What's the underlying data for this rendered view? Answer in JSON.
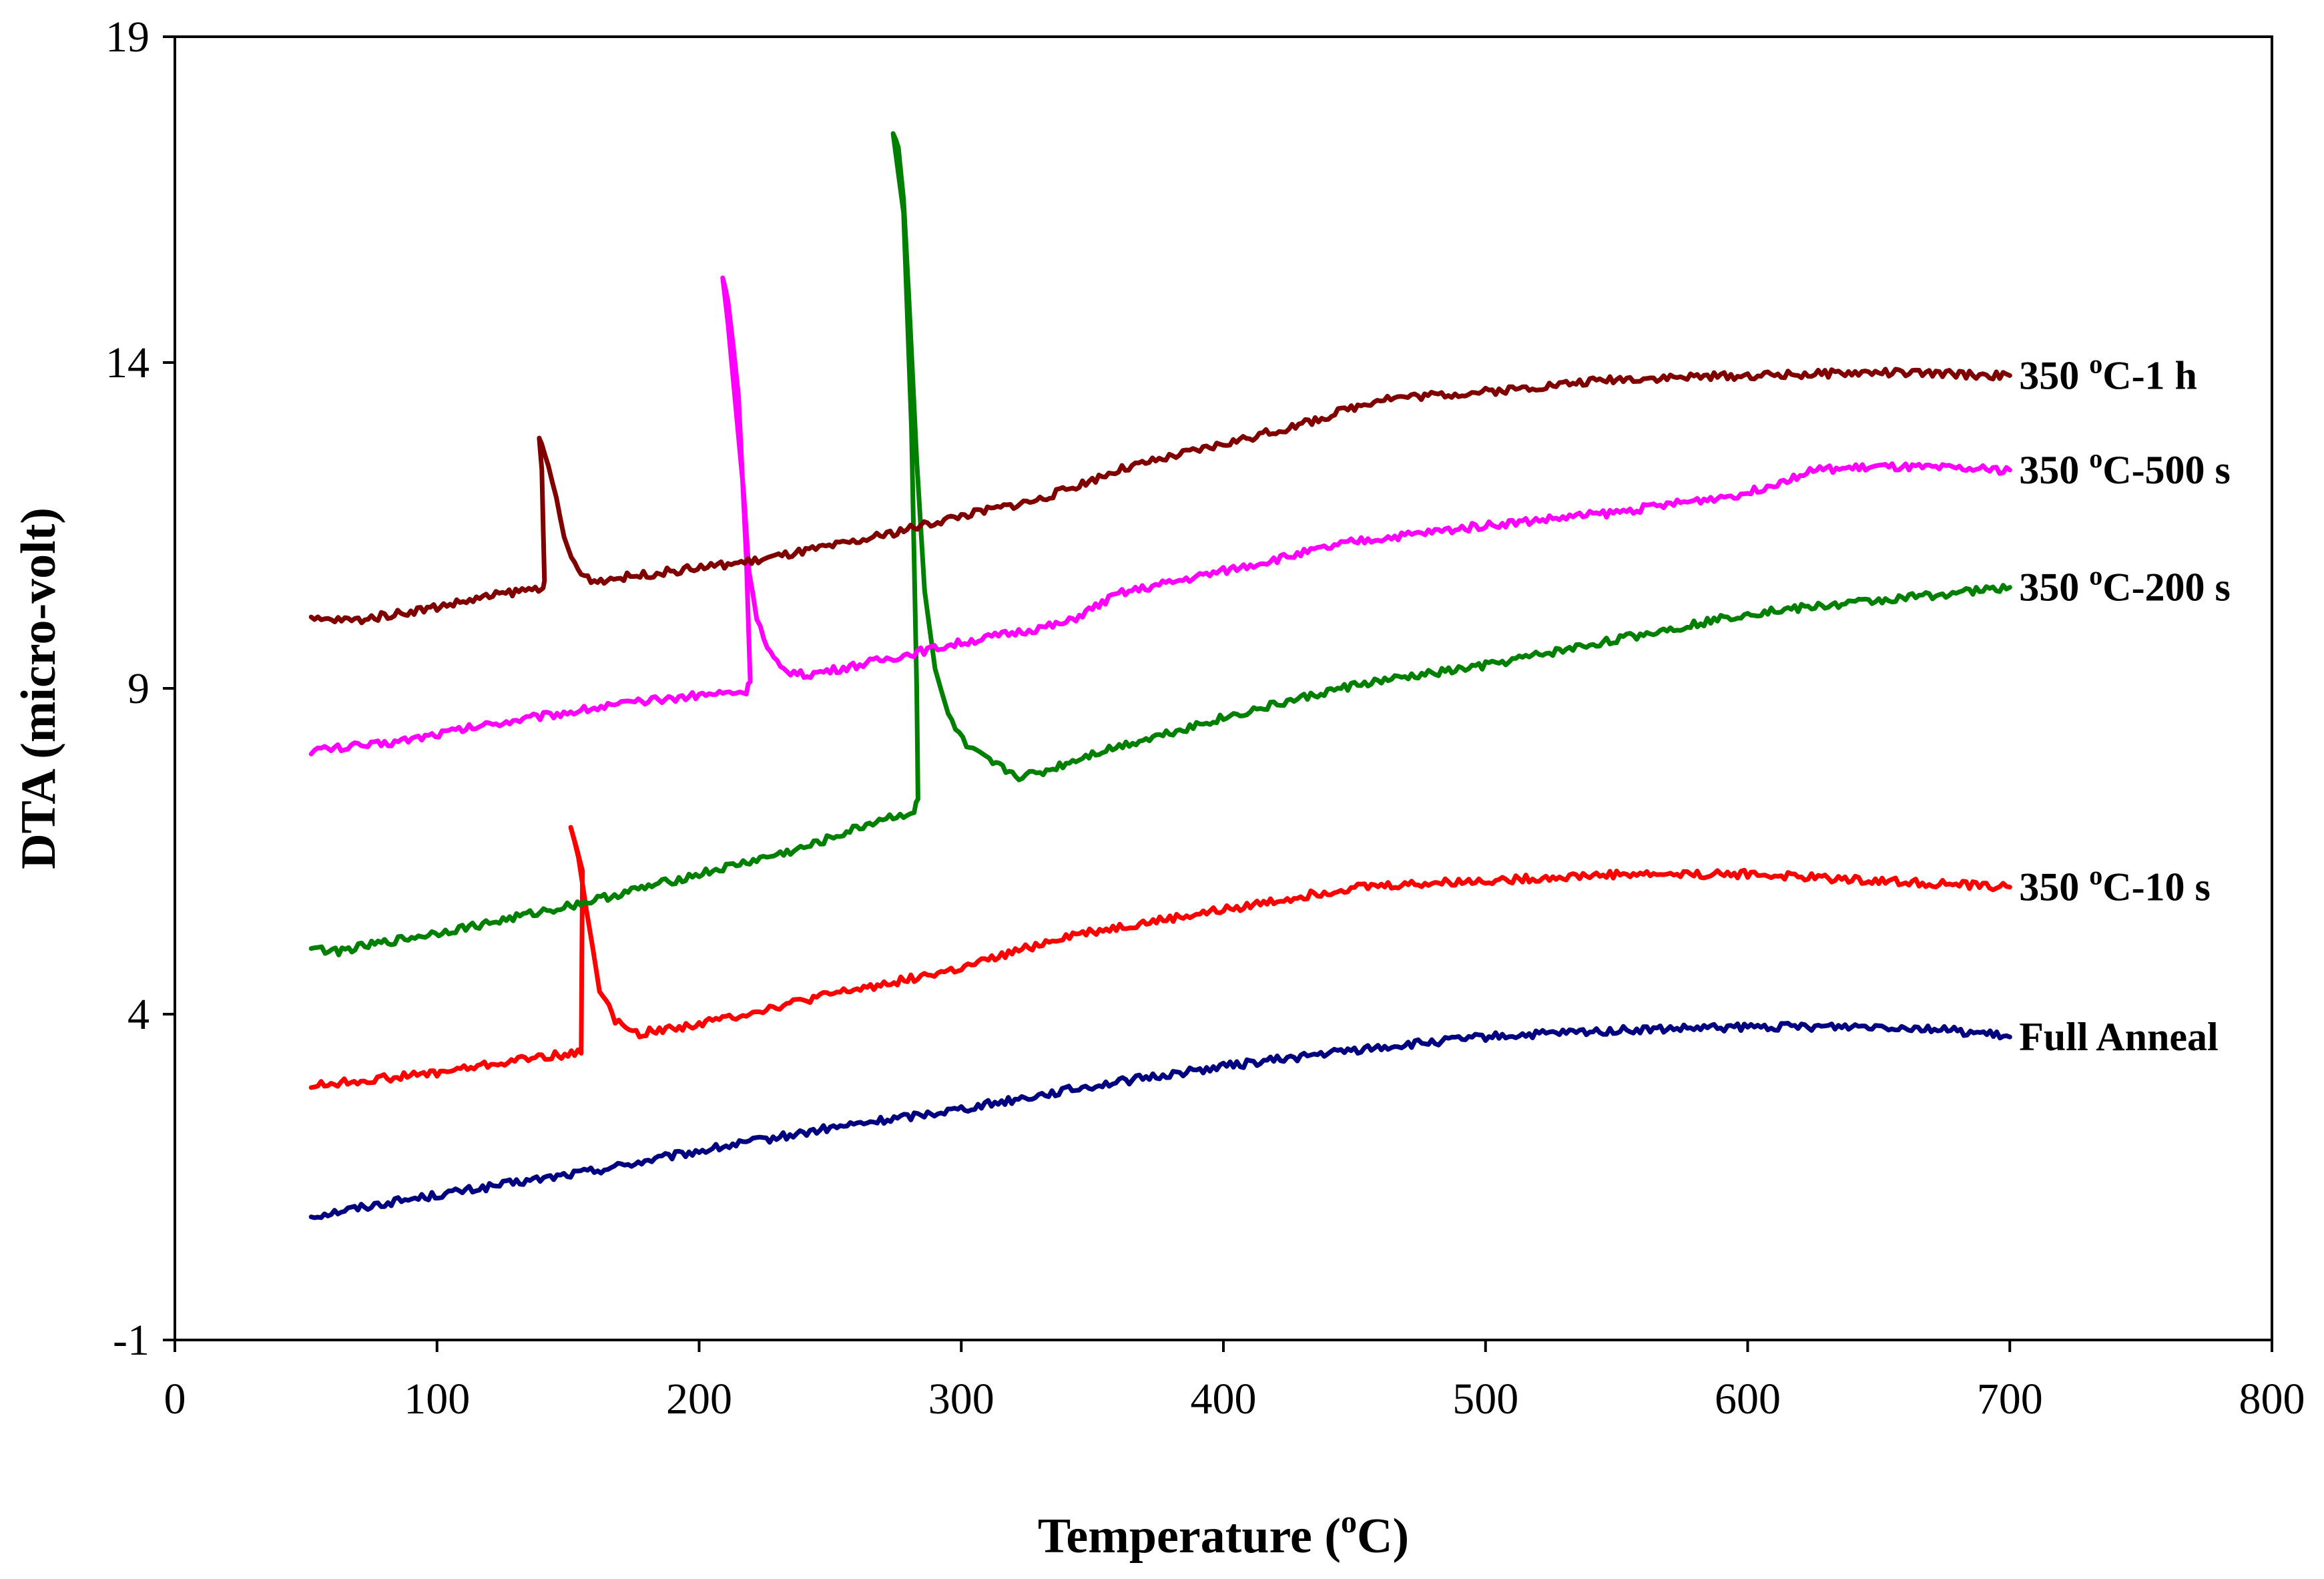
{
  "chart_data": {
    "type": "line",
    "title": "",
    "xlabel": "Temperature (",
    "xlabel_sup": "o",
    "xlabel_tail": "C)",
    "ylabel": "DTA (micro-volt)",
    "xlim": [
      0,
      800
    ],
    "ylim": [
      -1,
      19
    ],
    "xticks": [
      "0",
      "100",
      "200",
      "300",
      "400",
      "500",
      "600",
      "700",
      "800"
    ],
    "yticks": [
      "-1",
      "4",
      "9",
      "14",
      "19"
    ],
    "grid": false,
    "series": [
      {
        "name": "Full Anneal",
        "label_parts": [
          "Full Anneal"
        ],
        "color": "#000080",
        "points": [
          [
            52,
            0.9
          ],
          [
            80,
            1.1
          ],
          [
            120,
            1.35
          ],
          [
            160,
            1.6
          ],
          [
            200,
            1.9
          ],
          [
            250,
            2.25
          ],
          [
            300,
            2.55
          ],
          [
            350,
            2.9
          ],
          [
            400,
            3.2
          ],
          [
            450,
            3.45
          ],
          [
            500,
            3.65
          ],
          [
            550,
            3.75
          ],
          [
            600,
            3.8
          ],
          [
            650,
            3.82
          ],
          [
            670,
            3.78
          ],
          [
            690,
            3.7
          ],
          [
            700,
            3.65
          ]
        ]
      },
      {
        "name": "350 oC-10 s",
        "label_parts": [
          "350 ",
          "o",
          "C-10 s"
        ],
        "color": "#ff0000",
        "points": [
          [
            52,
            2.9
          ],
          [
            100,
            3.1
          ],
          [
            140,
            3.35
          ],
          [
            155,
            3.4
          ],
          [
            155.5,
            6.2
          ],
          [
            151,
            6.9
          ],
          [
            154,
            6.4
          ],
          [
            157,
            5.6
          ],
          [
            162,
            4.4
          ],
          [
            168,
            3.9
          ],
          [
            176,
            3.7
          ],
          [
            200,
            3.85
          ],
          [
            250,
            4.3
          ],
          [
            300,
            4.7
          ],
          [
            340,
            5.2
          ],
          [
            400,
            5.6
          ],
          [
            450,
            5.95
          ],
          [
            500,
            6.05
          ],
          [
            550,
            6.15
          ],
          [
            600,
            6.15
          ],
          [
            650,
            6.05
          ],
          [
            700,
            5.95
          ]
        ]
      },
      {
        "name": "350 oC-200 s",
        "label_parts": [
          "350 ",
          "o",
          "C-200 s"
        ],
        "color": "#008000",
        "points": [
          [
            52,
            5.05
          ],
          [
            60,
            4.95
          ],
          [
            80,
            5.1
          ],
          [
            120,
            5.4
          ],
          [
            160,
            5.75
          ],
          [
            200,
            6.15
          ],
          [
            240,
            6.55
          ],
          [
            270,
            7.0
          ],
          [
            282,
            7.1
          ],
          [
            283.5,
            7.3
          ],
          [
            283,
            9.0
          ],
          [
            281,
            13.0
          ],
          [
            278,
            16.3
          ],
          [
            274,
            17.5
          ],
          [
            276,
            17.3
          ],
          [
            278,
            16.5
          ],
          [
            280,
            15.0
          ],
          [
            283,
            12.5
          ],
          [
            286,
            10.5
          ],
          [
            290,
            9.3
          ],
          [
            295,
            8.6
          ],
          [
            302,
            8.1
          ],
          [
            312,
            7.85
          ],
          [
            322,
            7.65
          ],
          [
            330,
            7.7
          ],
          [
            350,
            8.0
          ],
          [
            400,
            8.55
          ],
          [
            450,
            9.05
          ],
          [
            500,
            9.35
          ],
          [
            550,
            9.75
          ],
          [
            600,
            10.15
          ],
          [
            650,
            10.35
          ],
          [
            700,
            10.55
          ]
        ]
      },
      {
        "name": "350 oC-500 s",
        "label_parts": [
          "350 ",
          "o",
          "C-500 s"
        ],
        "color": "#ff00ff",
        "points": [
          [
            52,
            8.05
          ],
          [
            80,
            8.15
          ],
          [
            120,
            8.45
          ],
          [
            160,
            8.7
          ],
          [
            200,
            8.9
          ],
          [
            218,
            8.95
          ],
          [
            219.5,
            9.1
          ],
          [
            218,
            11.0
          ],
          [
            215,
            13.5
          ],
          [
            211,
            15.0
          ],
          [
            209,
            15.3
          ],
          [
            211,
            14.6
          ],
          [
            214,
            13.3
          ],
          [
            217,
            12.0
          ],
          [
            219,
            10.8
          ],
          [
            222,
            10.1
          ],
          [
            226,
            9.6
          ],
          [
            231,
            9.3
          ],
          [
            240,
            9.2
          ],
          [
            260,
            9.35
          ],
          [
            300,
            9.7
          ],
          [
            340,
            10.0
          ],
          [
            360,
            10.45
          ],
          [
            400,
            10.8
          ],
          [
            450,
            11.25
          ],
          [
            500,
            11.5
          ],
          [
            550,
            11.7
          ],
          [
            600,
            12.0
          ],
          [
            625,
            12.35
          ],
          [
            650,
            12.4
          ],
          [
            700,
            12.35
          ]
        ]
      },
      {
        "name": "350 oC-1 h",
        "label_parts": [
          "350 ",
          "o",
          "C-1 h"
        ],
        "color": "#800000",
        "points": [
          [
            52,
            10.05
          ],
          [
            70,
            10.05
          ],
          [
            100,
            10.25
          ],
          [
            125,
            10.45
          ],
          [
            140,
            10.55
          ],
          [
            141,
            10.65
          ],
          [
            140,
            12.3
          ],
          [
            139,
            12.8
          ],
          [
            141,
            12.6
          ],
          [
            144,
            12.2
          ],
          [
            147,
            11.6
          ],
          [
            150,
            11.1
          ],
          [
            155,
            10.75
          ],
          [
            160,
            10.65
          ],
          [
            180,
            10.75
          ],
          [
            220,
            10.95
          ],
          [
            260,
            11.25
          ],
          [
            300,
            11.65
          ],
          [
            330,
            11.9
          ],
          [
            360,
            12.35
          ],
          [
            400,
            12.75
          ],
          [
            430,
            13.05
          ],
          [
            460,
            13.45
          ],
          [
            500,
            13.55
          ],
          [
            550,
            13.75
          ],
          [
            600,
            13.8
          ],
          [
            650,
            13.85
          ],
          [
            700,
            13.8
          ]
        ]
      }
    ]
  }
}
